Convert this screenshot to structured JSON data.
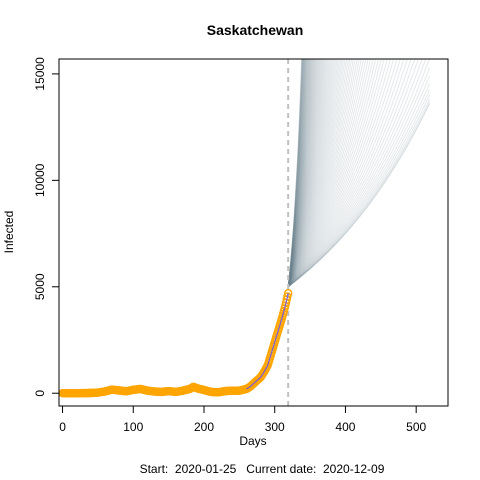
{
  "chart_data": {
    "type": "line",
    "title": "Saskatchewan",
    "xlabel": "Days",
    "ylabel": "Infected",
    "caption": "Start:  2020-01-25   Current date:  2020-12-09",
    "xlim": [
      -5,
      545
    ],
    "ylim": [
      -600,
      15700
    ],
    "x_ticks": [
      0,
      100,
      200,
      300,
      400,
      500
    ],
    "y_ticks": [
      0,
      5000,
      10000,
      15000
    ],
    "current_day": 319,
    "colors": {
      "observed": "#ffa500",
      "fitted": "#7a5dd6",
      "projection": "#6f8790",
      "marker_line": "#c0c0c0"
    },
    "observed": {
      "x": [
        0,
        20,
        40,
        50,
        60,
        70,
        80,
        90,
        100,
        110,
        120,
        130,
        140,
        150,
        160,
        170,
        180,
        185,
        190,
        200,
        210,
        220,
        230,
        240,
        250,
        260,
        265,
        270,
        275,
        280,
        285,
        290,
        295,
        300,
        305,
        310,
        315,
        319
      ],
      "y": [
        0,
        0,
        10,
        30,
        80,
        170,
        130,
        90,
        160,
        200,
        120,
        80,
        60,
        100,
        60,
        120,
        200,
        300,
        230,
        150,
        60,
        40,
        100,
        120,
        120,
        200,
        300,
        450,
        600,
        750,
        1000,
        1300,
        1850,
        2400,
        2950,
        3500,
        4100,
        4700
      ]
    },
    "projection": {
      "start_day": 319,
      "start_value": 5000,
      "n_lines": 120,
      "end_day": 520,
      "growth_rate_range": [
        0.005,
        0.06
      ]
    }
  }
}
